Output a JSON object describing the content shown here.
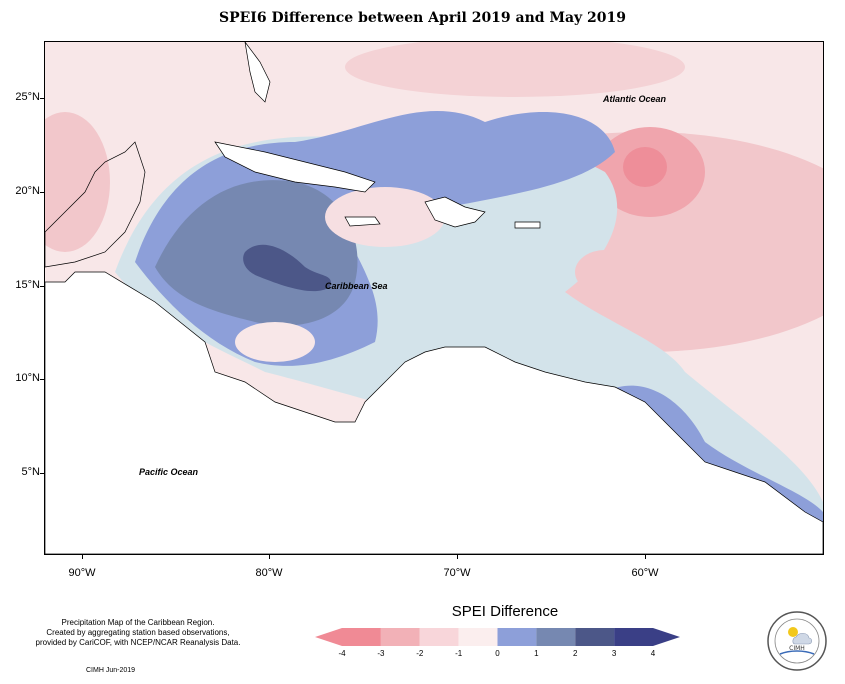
{
  "title": "SPEI6 Difference between April 2019 and May 2019",
  "map": {
    "labels": {
      "atlantic": "Atlantic Ocean",
      "caribbean": "Caribbean Sea",
      "pacific": "Pacific Ocean"
    },
    "lat_ticks": [
      "25°N",
      "20°N",
      "15°N",
      "10°N",
      "5°N"
    ],
    "lon_ticks": [
      "90°W",
      "80°W",
      "70°W",
      "60°W"
    ]
  },
  "footer": {
    "line1": "Precipitation Map of the Caribbean Region.",
    "line2": "Created by aggregating station based observations,",
    "line3": "provided by CariCOF, with NCEP/NCAR Reanalysis Data.",
    "credit": "CIMH  Jun-2019"
  },
  "legend": {
    "title": "SPEI Difference",
    "ticks": [
      "-4",
      "-3",
      "-2",
      "-1",
      "0",
      "1",
      "2",
      "3",
      "4"
    ],
    "colors": [
      "#f08a95",
      "#f2b1b7",
      "#f8d6da",
      "#fbeeee",
      "#d3e3ea",
      "#8d9fd9",
      "#7688b1",
      "#4c5788",
      "#3a3f86"
    ]
  },
  "logo": {
    "text": "CIMH"
  }
}
